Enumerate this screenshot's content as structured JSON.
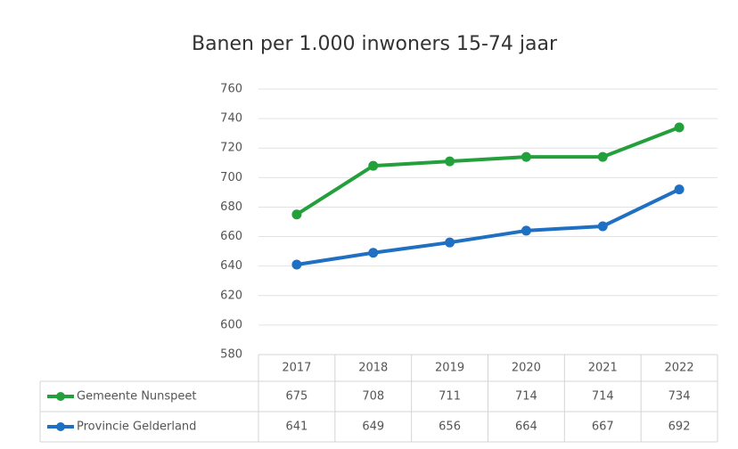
{
  "chart_data": {
    "type": "line",
    "title": "Banen per 1.000 inwoners 15-74 jaar",
    "categories": [
      "2017",
      "2018",
      "2019",
      "2020",
      "2021",
      "2022"
    ],
    "series": [
      {
        "name": "Gemeente Nunspeet",
        "color": "#23a03c",
        "values": [
          675,
          708,
          711,
          714,
          714,
          734
        ]
      },
      {
        "name": "Provincie Gelderland",
        "color": "#1f6fc2",
        "values": [
          641,
          649,
          656,
          664,
          667,
          692
        ]
      }
    ],
    "ylim": [
      580,
      760
    ],
    "yticks": [
      580,
      600,
      620,
      640,
      660,
      680,
      700,
      720,
      740,
      760
    ],
    "grid": true
  }
}
